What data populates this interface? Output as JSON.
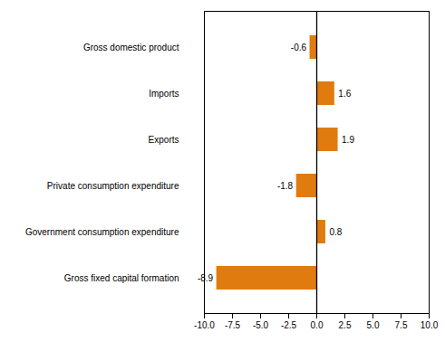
{
  "chart_data": {
    "type": "bar",
    "orientation": "horizontal",
    "categories": [
      "Gross fixed capital formation",
      "Government consumption expenditure",
      "Private consumption expenditure",
      "Exports",
      "Imports",
      "Gross domestic product"
    ],
    "values": [
      -8.9,
      0.8,
      -1.8,
      1.9,
      1.6,
      -0.6
    ],
    "color": "#e07b10",
    "xlim": [
      -10.0,
      10.0
    ],
    "xticks": [
      {
        "value": -10.0,
        "label": "-10.0"
      },
      -7.5,
      {
        "value": -5.0,
        "label": "-5.0"
      },
      -2.5,
      {
        "value": 0.0,
        "label": "0.0"
      },
      2.5,
      {
        "value": 5.0,
        "label": "5.0"
      },
      7.5,
      {
        "value": 10.0,
        "label": "10.0"
      }
    ],
    "grid": false,
    "data_labels": true
  }
}
